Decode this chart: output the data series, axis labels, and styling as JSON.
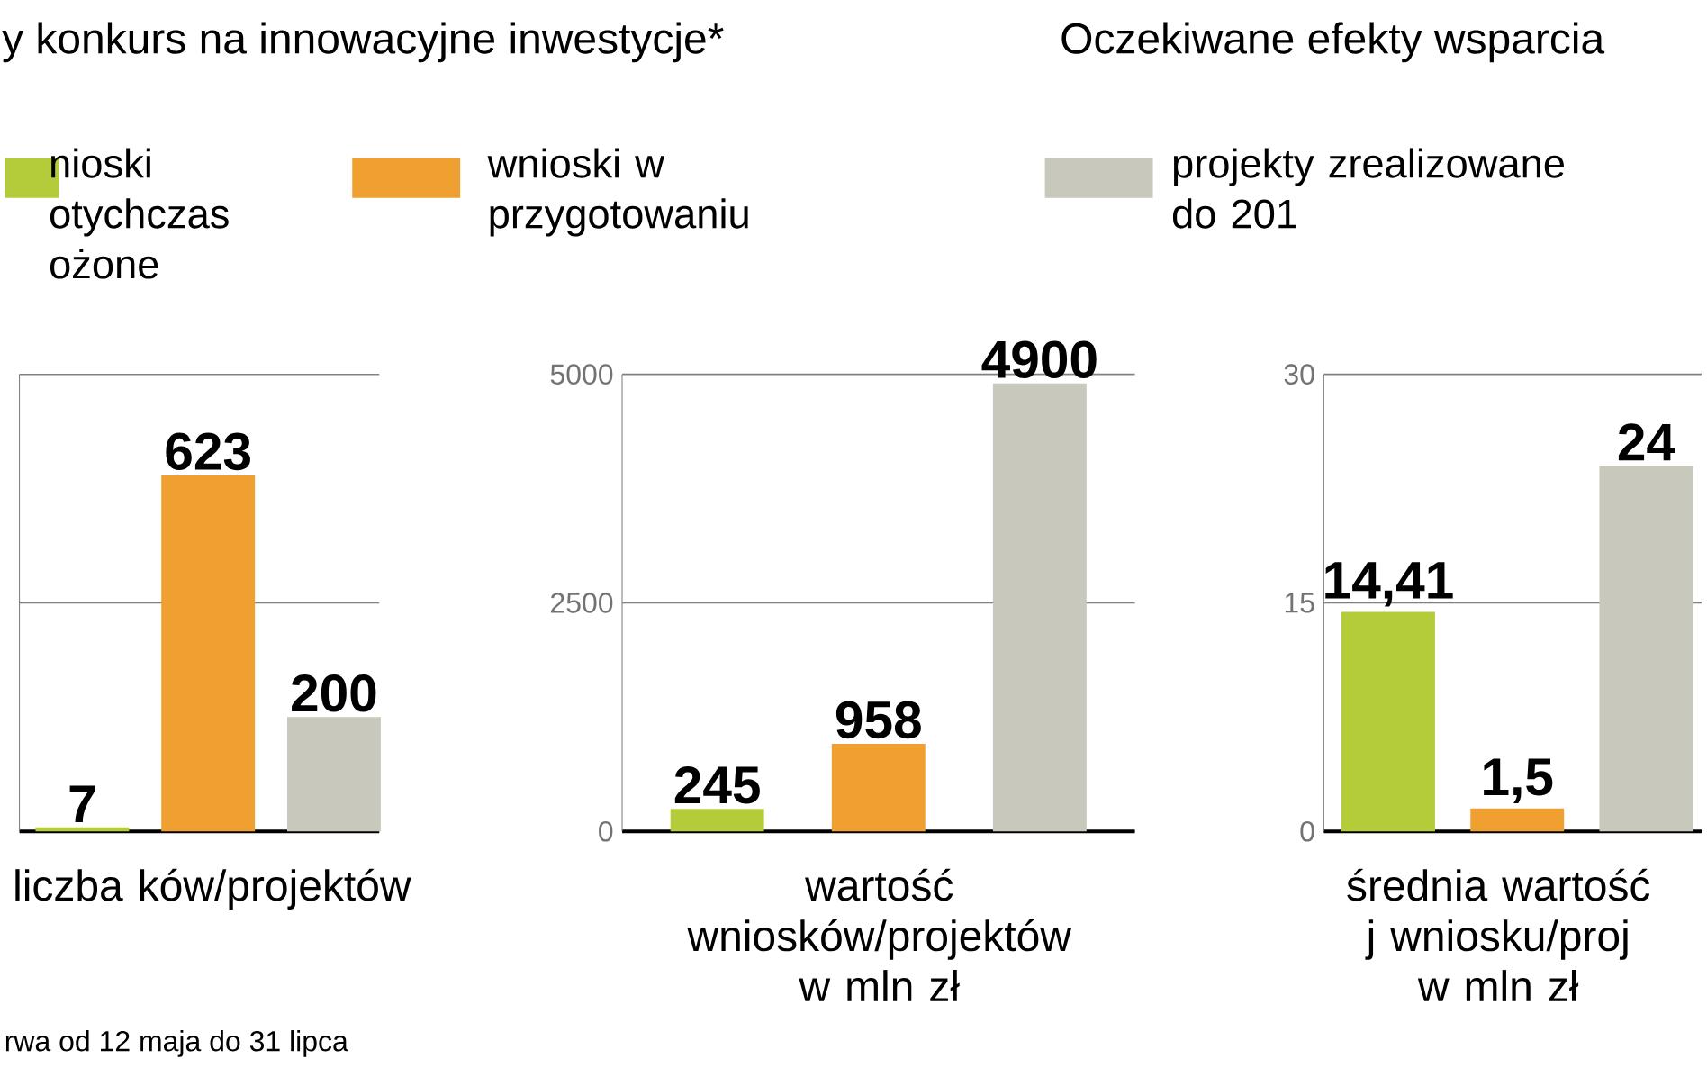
{
  "chart_data": [
    {
      "type": "bar",
      "title": "y konkurs na innowacyjne inwestycje*",
      "xlabel": "liczba ków/projektów",
      "categories": [
        null
      ],
      "ylim": [
        0,
        800
      ],
      "yticks": [
        {
          "value": 0,
          "label": null
        },
        {
          "value": 400,
          "label": null
        },
        {
          "value": 800,
          "label": null
        }
      ],
      "grid": "y",
      "legend": "top",
      "annotations": [
        "rwa od 12 maja do 31 lipca"
      ],
      "series": [
        {
          "name": "nioski otychczas ożone",
          "color": "#b5cc3a",
          "values": [
            7
          ],
          "value_labels": [
            "7"
          ]
        },
        {
          "name": "wnioski w przygotowaniu",
          "color": "#f0a030",
          "values": [
            623
          ],
          "value_labels": [
            "623"
          ]
        },
        {
          "name": "projekty zrealizowane do 201",
          "color": "#c8c8bc",
          "values": [
            200
          ],
          "value_labels": [
            "200"
          ]
        }
      ]
    },
    {
      "type": "bar",
      "xlabel": "wartość wniosków/projektów w mln zł",
      "categories": [
        null
      ],
      "ylim": [
        0,
        5000
      ],
      "yticks": [
        0,
        2500,
        5000
      ],
      "grid": "y",
      "data_labels": true,
      "series": [
        {
          "color": "#b5cc3a",
          "values": [
            245
          ]
        },
        {
          "color": "#f0a030",
          "values": [
            958
          ]
        },
        {
          "color": "#c8c8bc",
          "values": [
            4900
          ]
        }
      ]
    },
    {
      "type": "bar",
      "title": "Oczekiwane efekty wsparcia",
      "xlabel": "średnia wartość j wniosku/proj w mln zł",
      "categories": [
        null
      ],
      "ylim": [
        0,
        30
      ],
      "yticks": [
        0,
        15,
        30
      ],
      "grid": "y",
      "series": [
        {
          "color": "#b5cc3a",
          "values": [
            14.41
          ],
          "value_labels": [
            "14,41"
          ]
        },
        {
          "color": "#f0a030",
          "values": [
            1.5
          ],
          "value_labels": [
            "1,5"
          ]
        },
        {
          "color": "#c8c8bc",
          "values": [
            24
          ],
          "value_labels": [
            "24"
          ]
        }
      ]
    }
  ]
}
